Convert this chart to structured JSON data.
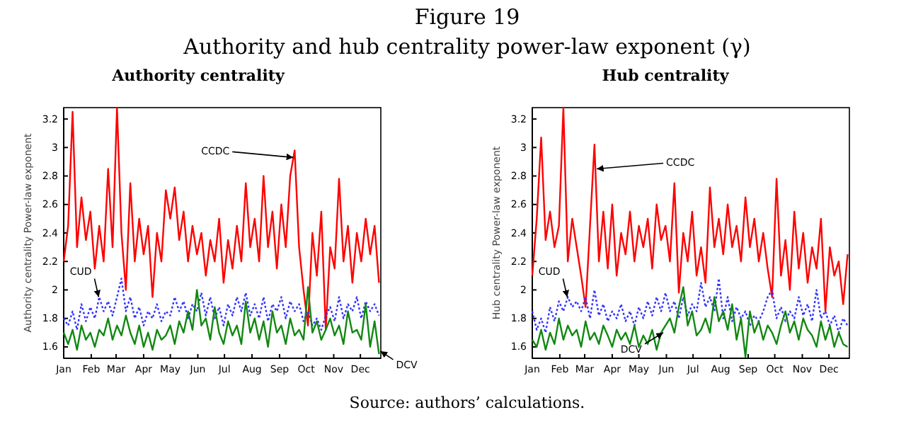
{
  "chart_data": [
    {
      "type": "line",
      "title": "Authority centrality",
      "ylabel": "Authority centrality Power-law exponent",
      "x": [
        "--01-01",
        "--01-06",
        "--01-11",
        "--01-16",
        "--01-21",
        "--01-26",
        "--01-31",
        "--02-05",
        "--02-10",
        "--02-15",
        "--02-20",
        "--02-25",
        "--03-02",
        "--03-07",
        "--03-12",
        "--03-17",
        "--03-22",
        "--03-27",
        "--04-01",
        "--04-06",
        "--04-11",
        "--04-16",
        "--04-21",
        "--04-26",
        "--05-01",
        "--05-06",
        "--05-11",
        "--05-16",
        "--05-21",
        "--05-26",
        "--05-31",
        "--06-05",
        "--06-10",
        "--06-15",
        "--06-20",
        "--06-25",
        "--06-30",
        "--07-05",
        "--07-10",
        "--07-15",
        "--07-20",
        "--07-25",
        "--07-30",
        "--08-04",
        "--08-09",
        "--08-14",
        "--08-19",
        "--08-24",
        "--08-29",
        "--09-03",
        "--09-08",
        "--09-13",
        "--09-18",
        "--09-23",
        "--09-28",
        "--10-03",
        "--10-08",
        "--10-13",
        "--10-18",
        "--10-23",
        "--10-28",
        "--11-02",
        "--11-07",
        "--11-12",
        "--11-17",
        "--11-22",
        "--11-27",
        "--12-02",
        "--12-07",
        "--12-12",
        "--12-17",
        "--12-22"
      ],
      "xlim": [
        "--01-01",
        "--12-24"
      ],
      "xticks": [
        {
          "value": "--01-01",
          "label": "Jan"
        },
        {
          "value": "--02-01",
          "label": "Feb"
        },
        {
          "value": "--03-01",
          "label": "Mar"
        },
        {
          "value": "--04-01",
          "label": "Apr"
        },
        {
          "value": "--05-01",
          "label": "May"
        },
        {
          "value": "--06-01",
          "label": "Jun"
        },
        {
          "value": "--07-01",
          "label": "Jul"
        },
        {
          "value": "--08-01",
          "label": "Aug"
        },
        {
          "value": "--09-01",
          "label": "Sep"
        },
        {
          "value": "--10-01",
          "label": "Oct"
        },
        {
          "value": "--11-01",
          "label": "Nov"
        },
        {
          "value": "--12-01",
          "label": "Dec"
        }
      ],
      "ylim": [
        1.52,
        3.28
      ],
      "yticks": [
        1.6,
        1.8,
        2,
        2.2,
        2.4,
        2.6,
        2.8,
        3,
        3.2
      ],
      "series": [
        {
          "color": "#ff0000",
          "line_style": "solid",
          "values": [
            2.2,
            2.45,
            3.25,
            2.3,
            2.65,
            2.35,
            2.55,
            2.15,
            2.45,
            2.2,
            2.85,
            2.3,
            3.28,
            2.4,
            2.0,
            2.75,
            2.2,
            2.5,
            2.25,
            2.45,
            1.95,
            2.4,
            2.2,
            2.7,
            2.5,
            2.72,
            2.35,
            2.55,
            2.2,
            2.45,
            2.25,
            2.4,
            2.1,
            2.35,
            2.2,
            2.5,
            2.05,
            2.35,
            2.15,
            2.45,
            2.2,
            2.75,
            2.3,
            2.5,
            2.2,
            2.8,
            2.3,
            2.55,
            2.15,
            2.6,
            2.3,
            2.8,
            2.98,
            2.3,
            2.0,
            1.75,
            2.4,
            2.1,
            2.55,
            1.72,
            2.3,
            2.15,
            2.78,
            2.2,
            2.45,
            2.05,
            2.4,
            2.2,
            2.5,
            2.25,
            2.45,
            2.05
          ]
        },
        {
          "color": "#3333ff",
          "line_style": "dotted",
          "values": [
            1.8,
            1.75,
            1.85,
            1.72,
            1.9,
            1.78,
            1.88,
            1.8,
            1.95,
            1.85,
            1.92,
            1.82,
            1.95,
            2.08,
            1.85,
            1.95,
            1.8,
            1.88,
            1.75,
            1.85,
            1.8,
            1.9,
            1.78,
            1.85,
            1.82,
            1.95,
            1.85,
            1.92,
            1.8,
            1.9,
            1.85,
            1.98,
            1.82,
            1.95,
            1.8,
            1.88,
            1.75,
            1.9,
            1.82,
            1.95,
            1.85,
            1.98,
            1.82,
            1.9,
            1.8,
            1.95,
            1.78,
            1.9,
            1.85,
            1.95,
            1.8,
            1.92,
            1.85,
            1.9,
            1.78,
            1.85,
            1.75,
            1.8,
            1.72,
            1.82,
            1.88,
            1.78,
            1.95,
            1.8,
            1.9,
            1.85,
            1.95,
            1.8,
            1.92,
            1.85,
            1.9,
            1.82
          ]
        },
        {
          "color": "#118811",
          "line_style": "solid",
          "values": [
            1.7,
            1.62,
            1.72,
            1.58,
            1.75,
            1.65,
            1.7,
            1.6,
            1.72,
            1.68,
            1.8,
            1.65,
            1.75,
            1.68,
            1.82,
            1.7,
            1.62,
            1.75,
            1.6,
            1.7,
            1.58,
            1.72,
            1.65,
            1.68,
            1.75,
            1.62,
            1.78,
            1.7,
            1.85,
            1.72,
            2.0,
            1.75,
            1.8,
            1.65,
            1.88,
            1.7,
            1.62,
            1.78,
            1.68,
            1.75,
            1.62,
            1.92,
            1.7,
            1.8,
            1.65,
            1.78,
            1.6,
            1.85,
            1.7,
            1.75,
            1.62,
            1.8,
            1.68,
            1.72,
            1.65,
            2.02,
            1.7,
            1.78,
            1.65,
            1.72,
            1.8,
            1.68,
            1.75,
            1.62,
            1.85,
            1.7,
            1.72,
            1.65,
            1.9,
            1.6,
            1.78,
            1.55
          ]
        }
      ],
      "annotations": [
        "Figure 19",
        "Authority and hub centrality power-law exponent (γ)",
        "Source: authors’ calculations.",
        {
          "text": "CCDC",
          "x": "--09-18",
          "y": 2.93
        },
        {
          "text": "CUD",
          "x": "--02-11",
          "y": 1.95
        },
        {
          "text": "DCV",
          "x": "--12-22",
          "y": 1.57
        }
      ]
    },
    {
      "type": "line",
      "title": "Hub centrality",
      "ylabel": "Hub centrality Power-law exponent",
      "x": [
        "--01-01",
        "--01-06",
        "--01-11",
        "--01-16",
        "--01-21",
        "--01-26",
        "--01-31",
        "--02-05",
        "--02-10",
        "--02-15",
        "--02-20",
        "--02-25",
        "--03-02",
        "--03-07",
        "--03-12",
        "--03-17",
        "--03-22",
        "--03-27",
        "--04-01",
        "--04-06",
        "--04-11",
        "--04-16",
        "--04-21",
        "--04-26",
        "--05-01",
        "--05-06",
        "--05-11",
        "--05-16",
        "--05-21",
        "--05-26",
        "--05-31",
        "--06-05",
        "--06-10",
        "--06-15",
        "--06-20",
        "--06-25",
        "--06-30",
        "--07-05",
        "--07-10",
        "--07-15",
        "--07-20",
        "--07-25",
        "--07-30",
        "--08-04",
        "--08-09",
        "--08-14",
        "--08-19",
        "--08-24",
        "--08-29",
        "--09-03",
        "--09-08",
        "--09-13",
        "--09-18",
        "--09-23",
        "--09-28",
        "--10-03",
        "--10-08",
        "--10-13",
        "--10-18",
        "--10-23",
        "--10-28",
        "--11-02",
        "--11-07",
        "--11-12",
        "--11-17",
        "--11-22",
        "--11-27",
        "--12-02",
        "--12-07",
        "--12-12",
        "--12-17",
        "--12-22"
      ],
      "xlim": [
        "--01-01",
        "--12-24"
      ],
      "xticks": [
        {
          "value": "--01-01",
          "label": "Jan"
        },
        {
          "value": "--02-01",
          "label": "Feb"
        },
        {
          "value": "--03-01",
          "label": "Mar"
        },
        {
          "value": "--04-01",
          "label": "Apr"
        },
        {
          "value": "--05-01",
          "label": "May"
        },
        {
          "value": "--06-01",
          "label": "Jun"
        },
        {
          "value": "--07-01",
          "label": "Jul"
        },
        {
          "value": "--08-01",
          "label": "Aug"
        },
        {
          "value": "--09-01",
          "label": "Sep"
        },
        {
          "value": "--10-01",
          "label": "Oct"
        },
        {
          "value": "--11-01",
          "label": "Nov"
        },
        {
          "value": "--12-01",
          "label": "Dec"
        }
      ],
      "ylim": [
        1.52,
        3.28
      ],
      "yticks": [
        1.6,
        1.8,
        2,
        2.2,
        2.4,
        2.6,
        2.8,
        3,
        3.2
      ],
      "series": [
        {
          "color": "#ff0000",
          "line_style": "solid",
          "values": [
            2.1,
            2.5,
            3.07,
            2.35,
            2.55,
            2.3,
            2.45,
            3.28,
            2.2,
            2.5,
            2.3,
            2.1,
            1.88,
            2.45,
            3.02,
            2.2,
            2.55,
            2.15,
            2.6,
            2.1,
            2.4,
            2.25,
            2.55,
            2.2,
            2.45,
            2.3,
            2.5,
            2.15,
            2.6,
            2.35,
            2.45,
            2.2,
            2.75,
            1.98,
            2.4,
            2.2,
            2.55,
            2.1,
            2.3,
            2.05,
            2.72,
            2.3,
            2.5,
            2.25,
            2.6,
            2.3,
            2.45,
            2.2,
            2.65,
            2.3,
            2.5,
            2.2,
            2.4,
            2.15,
            1.95,
            2.78,
            2.1,
            2.35,
            2.0,
            2.55,
            2.15,
            2.4,
            2.05,
            2.3,
            2.15,
            2.5,
            1.85,
            2.3,
            2.1,
            2.2,
            1.9,
            2.25
          ]
        },
        {
          "color": "#3333ff",
          "line_style": "dotted",
          "values": [
            1.85,
            1.72,
            1.8,
            1.7,
            1.88,
            1.78,
            1.92,
            1.85,
            1.95,
            1.88,
            1.92,
            1.85,
            1.95,
            1.8,
            2.0,
            1.82,
            1.9,
            1.78,
            1.85,
            1.8,
            1.9,
            1.78,
            1.85,
            1.75,
            1.88,
            1.8,
            1.92,
            1.82,
            1.95,
            1.85,
            1.98,
            1.85,
            1.92,
            1.8,
            1.95,
            1.82,
            1.9,
            1.85,
            2.05,
            1.88,
            1.95,
            1.85,
            2.08,
            1.8,
            1.95,
            1.78,
            1.88,
            1.8,
            1.85,
            1.75,
            1.82,
            1.78,
            1.85,
            1.95,
            2.0,
            1.8,
            1.88,
            1.78,
            1.85,
            1.8,
            1.95,
            1.82,
            1.9,
            1.78,
            2.0,
            1.8,
            1.85,
            1.75,
            1.82,
            1.7,
            1.8,
            1.75
          ]
        },
        {
          "color": "#118811",
          "line_style": "solid",
          "values": [
            1.65,
            1.6,
            1.72,
            1.58,
            1.7,
            1.62,
            1.8,
            1.65,
            1.75,
            1.68,
            1.72,
            1.6,
            1.78,
            1.65,
            1.7,
            1.62,
            1.75,
            1.68,
            1.6,
            1.72,
            1.65,
            1.7,
            1.62,
            1.75,
            1.6,
            1.68,
            1.62,
            1.72,
            1.58,
            1.7,
            1.75,
            1.8,
            1.7,
            1.88,
            2.02,
            1.75,
            1.85,
            1.68,
            1.72,
            1.8,
            1.7,
            1.95,
            1.78,
            1.85,
            1.72,
            1.9,
            1.65,
            1.8,
            1.53,
            1.85,
            1.7,
            1.78,
            1.65,
            1.75,
            1.7,
            1.62,
            1.75,
            1.85,
            1.7,
            1.78,
            1.65,
            1.8,
            1.72,
            1.68,
            1.6,
            1.78,
            1.65,
            1.75,
            1.6,
            1.7,
            1.62,
            1.6
          ]
        }
      ],
      "annotations": [
        {
          "text": "CCDC",
          "x": "--03-13",
          "y": 2.85
        },
        {
          "text": "CUD",
          "x": "--02-11",
          "y": 1.95
        },
        {
          "text": "DCV",
          "x": "--05-30",
          "y": 1.7
        }
      ]
    }
  ]
}
